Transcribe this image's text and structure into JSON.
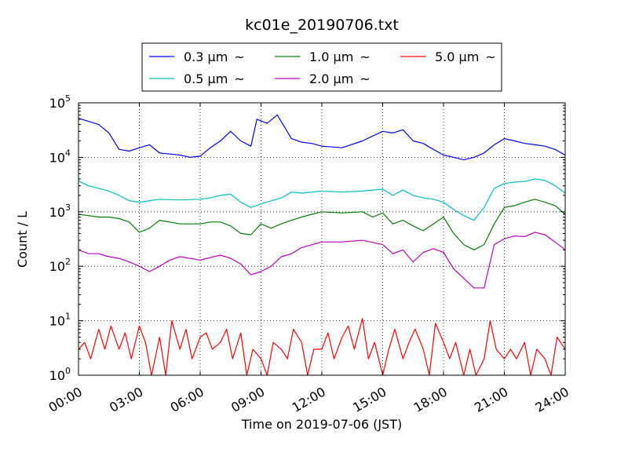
{
  "chart_data": {
    "type": "line",
    "title": "kc01e_20190706.txt",
    "xlabel": "Time on 2019-07-06 (JST)",
    "ylabel": "Count / L",
    "yscale": "log",
    "ylim": [
      1,
      100000
    ],
    "xlim": [
      "00:00",
      "24:00"
    ],
    "x_ticks": [
      "00:00",
      "03:00",
      "06:00",
      "09:00",
      "12:00",
      "15:00",
      "18:00",
      "21:00",
      "24:00"
    ],
    "y_ticks": [
      {
        "base": "10",
        "exp": "0",
        "value": 1
      },
      {
        "base": "10",
        "exp": "1",
        "value": 10
      },
      {
        "base": "10",
        "exp": "2",
        "value": 100
      },
      {
        "base": "10",
        "exp": "3",
        "value": 1000
      },
      {
        "base": "10",
        "exp": "4",
        "value": 10000
      },
      {
        "base": "10",
        "exp": "5",
        "value": 100000
      }
    ],
    "grid": true,
    "legend_position": "top-center",
    "legend_suffix": "~",
    "series": [
      {
        "name": "0.3 μm",
        "color": "#0000ff",
        "points": [
          [
            0,
            52000
          ],
          [
            1,
            40000
          ],
          [
            1.5,
            28000
          ],
          [
            2,
            14000
          ],
          [
            2.5,
            13000
          ],
          [
            3,
            15000
          ],
          [
            3.5,
            17000
          ],
          [
            4,
            12000
          ],
          [
            4.5,
            11500
          ],
          [
            5,
            11000
          ],
          [
            5.5,
            10000
          ],
          [
            6,
            10500
          ],
          [
            6.5,
            15000
          ],
          [
            7,
            20000
          ],
          [
            7.5,
            30000
          ],
          [
            8,
            20000
          ],
          [
            8.5,
            16000
          ],
          [
            8.8,
            50000
          ],
          [
            9.3,
            42000
          ],
          [
            9.8,
            60000
          ],
          [
            10.5,
            22000
          ],
          [
            11,
            19000
          ],
          [
            11.5,
            18000
          ],
          [
            12,
            16000
          ],
          [
            13,
            15000
          ],
          [
            14,
            20000
          ],
          [
            15,
            30000
          ],
          [
            15.5,
            28000
          ],
          [
            16,
            32000
          ],
          [
            16.5,
            20000
          ],
          [
            17,
            18000
          ],
          [
            17.5,
            14000
          ],
          [
            18,
            11000
          ],
          [
            18.5,
            10000
          ],
          [
            19,
            9000
          ],
          [
            19.5,
            10000
          ],
          [
            20,
            12000
          ],
          [
            20.5,
            17000
          ],
          [
            21,
            22000
          ],
          [
            21.5,
            20000
          ],
          [
            22,
            18000
          ],
          [
            22.5,
            17000
          ],
          [
            23,
            16000
          ],
          [
            23.5,
            14000
          ],
          [
            24,
            11000
          ]
        ]
      },
      {
        "name": "0.5 μm",
        "color": "#00bfbf",
        "points": [
          [
            0,
            3700
          ],
          [
            0.5,
            3000
          ],
          [
            1,
            2700
          ],
          [
            1.5,
            2400
          ],
          [
            2,
            2000
          ],
          [
            2.5,
            1600
          ],
          [
            3,
            1500
          ],
          [
            4,
            1700
          ],
          [
            5,
            1650
          ],
          [
            6,
            1700
          ],
          [
            6.5,
            1800
          ],
          [
            7,
            2000
          ],
          [
            7.5,
            2100
          ],
          [
            8,
            1500
          ],
          [
            8.5,
            1200
          ],
          [
            9,
            1400
          ],
          [
            10,
            1800
          ],
          [
            10.5,
            2300
          ],
          [
            11,
            2200
          ],
          [
            12,
            2400
          ],
          [
            13,
            2300
          ],
          [
            14,
            2400
          ],
          [
            15,
            2600
          ],
          [
            15.5,
            2000
          ],
          [
            16,
            2500
          ],
          [
            16.5,
            2000
          ],
          [
            17,
            1800
          ],
          [
            17.5,
            1700
          ],
          [
            18,
            1500
          ],
          [
            18.5,
            1100
          ],
          [
            19,
            850
          ],
          [
            19.5,
            700
          ],
          [
            20,
            1200
          ],
          [
            20.5,
            2700
          ],
          [
            21,
            3300
          ],
          [
            21.5,
            3500
          ],
          [
            22,
            3600
          ],
          [
            22.5,
            4000
          ],
          [
            23,
            3800
          ],
          [
            23.5,
            3000
          ],
          [
            24,
            2200
          ]
        ]
      },
      {
        "name": "1.0 μm",
        "color": "#008000",
        "points": [
          [
            0,
            900
          ],
          [
            0.5,
            850
          ],
          [
            1,
            800
          ],
          [
            1.5,
            800
          ],
          [
            2,
            750
          ],
          [
            2.5,
            650
          ],
          [
            3,
            420
          ],
          [
            3.5,
            500
          ],
          [
            4,
            700
          ],
          [
            5,
            600
          ],
          [
            6,
            600
          ],
          [
            6.5,
            650
          ],
          [
            7,
            650
          ],
          [
            7.5,
            550
          ],
          [
            8,
            400
          ],
          [
            8.5,
            380
          ],
          [
            9,
            600
          ],
          [
            9.5,
            500
          ],
          [
            10,
            600
          ],
          [
            10.5,
            700
          ],
          [
            11,
            800
          ],
          [
            11.5,
            900
          ],
          [
            12,
            1000
          ],
          [
            13,
            950
          ],
          [
            14,
            1000
          ],
          [
            14.5,
            800
          ],
          [
            15,
            950
          ],
          [
            15.5,
            600
          ],
          [
            16,
            700
          ],
          [
            16.5,
            550
          ],
          [
            17,
            450
          ],
          [
            17.5,
            600
          ],
          [
            18,
            800
          ],
          [
            18.5,
            400
          ],
          [
            19,
            250
          ],
          [
            19.5,
            200
          ],
          [
            20,
            250
          ],
          [
            20.5,
            600
          ],
          [
            21,
            1200
          ],
          [
            21.5,
            1300
          ],
          [
            22,
            1500
          ],
          [
            22.5,
            1700
          ],
          [
            23,
            1500
          ],
          [
            23.5,
            1300
          ],
          [
            24,
            900
          ]
        ]
      },
      {
        "name": "2.0 μm",
        "color": "#bf00bf",
        "points": [
          [
            0,
            200
          ],
          [
            0.5,
            170
          ],
          [
            1,
            170
          ],
          [
            1.5,
            150
          ],
          [
            2,
            140
          ],
          [
            2.5,
            120
          ],
          [
            3,
            100
          ],
          [
            3.5,
            80
          ],
          [
            4,
            100
          ],
          [
            4.5,
            130
          ],
          [
            5,
            150
          ],
          [
            6,
            130
          ],
          [
            7,
            160
          ],
          [
            7.5,
            140
          ],
          [
            8,
            110
          ],
          [
            8.5,
            70
          ],
          [
            9,
            80
          ],
          [
            9.5,
            100
          ],
          [
            10,
            150
          ],
          [
            10.5,
            170
          ],
          [
            11,
            220
          ],
          [
            12,
            280
          ],
          [
            13,
            280
          ],
          [
            14,
            300
          ],
          [
            15,
            250
          ],
          [
            15.5,
            170
          ],
          [
            16,
            200
          ],
          [
            16.5,
            120
          ],
          [
            17,
            180
          ],
          [
            17.5,
            210
          ],
          [
            18,
            180
          ],
          [
            18.5,
            90
          ],
          [
            19,
            60
          ],
          [
            19.5,
            40
          ],
          [
            20,
            40
          ],
          [
            20.5,
            250
          ],
          [
            21,
            320
          ],
          [
            21.5,
            360
          ],
          [
            22,
            350
          ],
          [
            22.5,
            420
          ],
          [
            23,
            380
          ],
          [
            23.5,
            280
          ],
          [
            24,
            200
          ]
        ]
      },
      {
        "name": "5.0 μm",
        "color": "#ff0000",
        "points": [
          [
            0,
            3
          ],
          [
            0.3,
            4
          ],
          [
            0.6,
            2
          ],
          [
            1,
            7
          ],
          [
            1.3,
            3
          ],
          [
            1.6,
            8
          ],
          [
            2,
            3
          ],
          [
            2.3,
            6
          ],
          [
            2.6,
            2
          ],
          [
            3,
            8
          ],
          [
            3.3,
            4
          ],
          [
            3.6,
            1
          ],
          [
            4,
            5
          ],
          [
            4.3,
            1
          ],
          [
            4.6,
            10
          ],
          [
            5,
            3
          ],
          [
            5.3,
            7
          ],
          [
            5.6,
            2
          ],
          [
            6,
            5
          ],
          [
            6.3,
            6
          ],
          [
            6.6,
            3
          ],
          [
            7,
            4
          ],
          [
            7.3,
            7
          ],
          [
            7.6,
            2
          ],
          [
            8,
            6
          ],
          [
            8.3,
            1
          ],
          [
            8.6,
            3
          ],
          [
            9,
            2
          ],
          [
            9.3,
            1
          ],
          [
            9.6,
            4
          ],
          [
            10,
            3
          ],
          [
            10.3,
            2
          ],
          [
            10.6,
            7
          ],
          [
            11,
            4
          ],
          [
            11.3,
            1
          ],
          [
            11.6,
            3
          ],
          [
            12,
            3
          ],
          [
            12.3,
            6
          ],
          [
            12.6,
            2
          ],
          [
            13,
            5
          ],
          [
            13.3,
            8
          ],
          [
            13.6,
            3
          ],
          [
            14,
            11
          ],
          [
            14.3,
            2
          ],
          [
            14.6,
            4
          ],
          [
            15,
            1
          ],
          [
            15.3,
            3
          ],
          [
            15.6,
            7
          ],
          [
            16,
            2
          ],
          [
            16.3,
            4
          ],
          [
            16.6,
            7
          ],
          [
            17,
            3
          ],
          [
            17.3,
            1
          ],
          [
            17.6,
            9
          ],
          [
            18,
            4
          ],
          [
            18.3,
            2
          ],
          [
            18.6,
            4
          ],
          [
            19,
            1
          ],
          [
            19.3,
            3
          ],
          [
            19.6,
            1
          ],
          [
            20,
            2
          ],
          [
            20.3,
            10
          ],
          [
            20.6,
            3
          ],
          [
            21,
            2
          ],
          [
            21.3,
            3
          ],
          [
            21.6,
            2
          ],
          [
            22,
            4
          ],
          [
            22.3,
            1
          ],
          [
            22.6,
            3
          ],
          [
            23,
            2
          ],
          [
            23.3,
            1
          ],
          [
            23.6,
            5
          ],
          [
            24,
            3
          ]
        ]
      }
    ]
  }
}
